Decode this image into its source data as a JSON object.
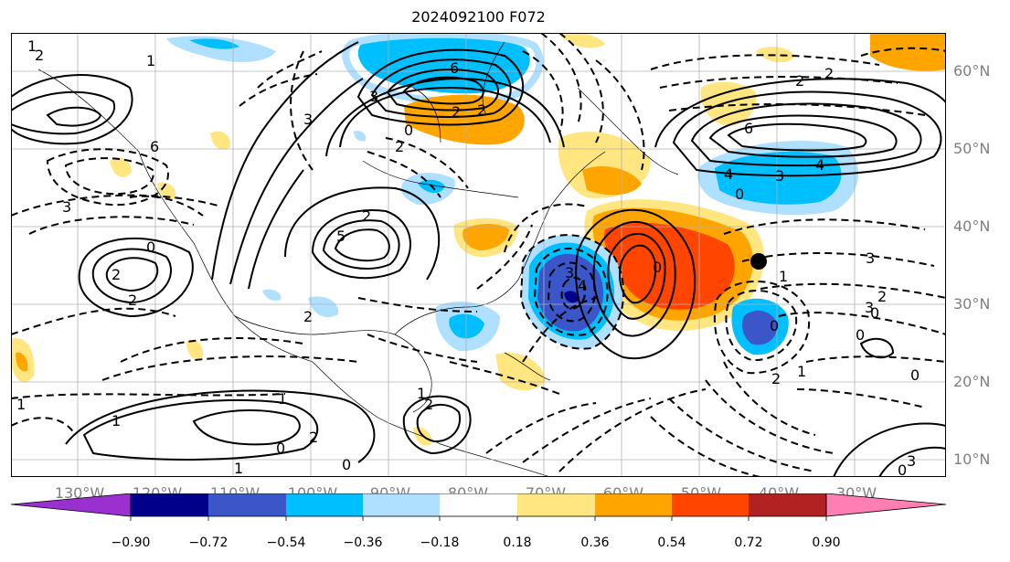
{
  "title": "2024092100 F072",
  "colors": {
    "neg_090_plus": "#9b30d0",
    "neg_072_090": "#00008b",
    "neg_054_072": "#3a56c8",
    "neg_036_054": "#00bfff",
    "neg_018_036": "#b0e0ff",
    "neutral": "#ffffff",
    "pos_018_036": "#ffe680",
    "pos_036_054": "#ffa500",
    "pos_054_072": "#ff4500",
    "pos_072_090": "#b22222",
    "pos_090_plus": "#ff7fb2",
    "contour": "#000000",
    "grid": "#b0b0b0",
    "axis_label": "#7f7f7f"
  },
  "lat_labels": [
    "60°N",
    "50°N",
    "40°N",
    "30°N",
    "20°N",
    "10°N"
  ],
  "lon_labels": [
    "130°W",
    "120°W",
    "110°W",
    "100°W",
    "90°W",
    "80°W",
    "70°W",
    "60°W",
    "50°W",
    "40°W",
    "30°W"
  ],
  "colorbar_ticks": [
    "−0.90",
    "−0.72",
    "−0.54",
    "−0.36",
    "−0.18",
    "0.18",
    "0.36",
    "0.54",
    "0.72",
    "0.90"
  ],
  "contour_labels": [
    "1",
    "2",
    "1",
    "2",
    "1",
    "2",
    "1",
    "6",
    "3",
    "6",
    "2",
    "3",
    "4",
    "5",
    "0",
    "2",
    "1",
    "2",
    "6",
    "3",
    "2",
    "2",
    "3",
    "2",
    "5",
    "2",
    "5",
    "2",
    "2",
    "3",
    "4",
    "2",
    "0",
    "4",
    "2",
    "3",
    "6",
    "2",
    "0",
    "4",
    "2",
    "3",
    "6",
    "3",
    "2",
    "0",
    "2",
    "1",
    "0",
    "1",
    "2",
    "1",
    "0",
    "2",
    "1",
    "0",
    "2",
    "1",
    "0",
    "1",
    "0",
    "1",
    "3",
    "2",
    "0",
    "1",
    "2",
    "3",
    "1",
    "2",
    "0"
  ],
  "map_labels": {
    "l1": "1",
    "l2": "2",
    "l3": "1",
    "l4": "6",
    "l5": "2",
    "l6": "3",
    "l7": "6",
    "l8": "3",
    "l9": "4",
    "l10": "2",
    "l11": "0",
    "l12": "3",
    "l13": "6",
    "l14": "2",
    "l15": "2",
    "l16": "4",
    "l17": "3",
    "l18": "0",
    "l19": "3",
    "l20": "5",
    "l21": "2",
    "l22": "2",
    "l23": "2",
    "l24": "2",
    "l25": "0",
    "l26": "3",
    "l27": "4",
    "l28": "0",
    "l29": "1",
    "l30": "1",
    "l31": "2",
    "l32": "0",
    "l33": "1",
    "l34": "0",
    "l35": "1",
    "l36": "2",
    "l37": "0",
    "l38": "3",
    "l39": "2",
    "l40": "0",
    "l41": "1",
    "l42": "2",
    "l43": "0",
    "l44": "1",
    "l45": "0",
    "l46": "2",
    "l47": "3",
    "l48": "0",
    "l49": "1"
  }
}
